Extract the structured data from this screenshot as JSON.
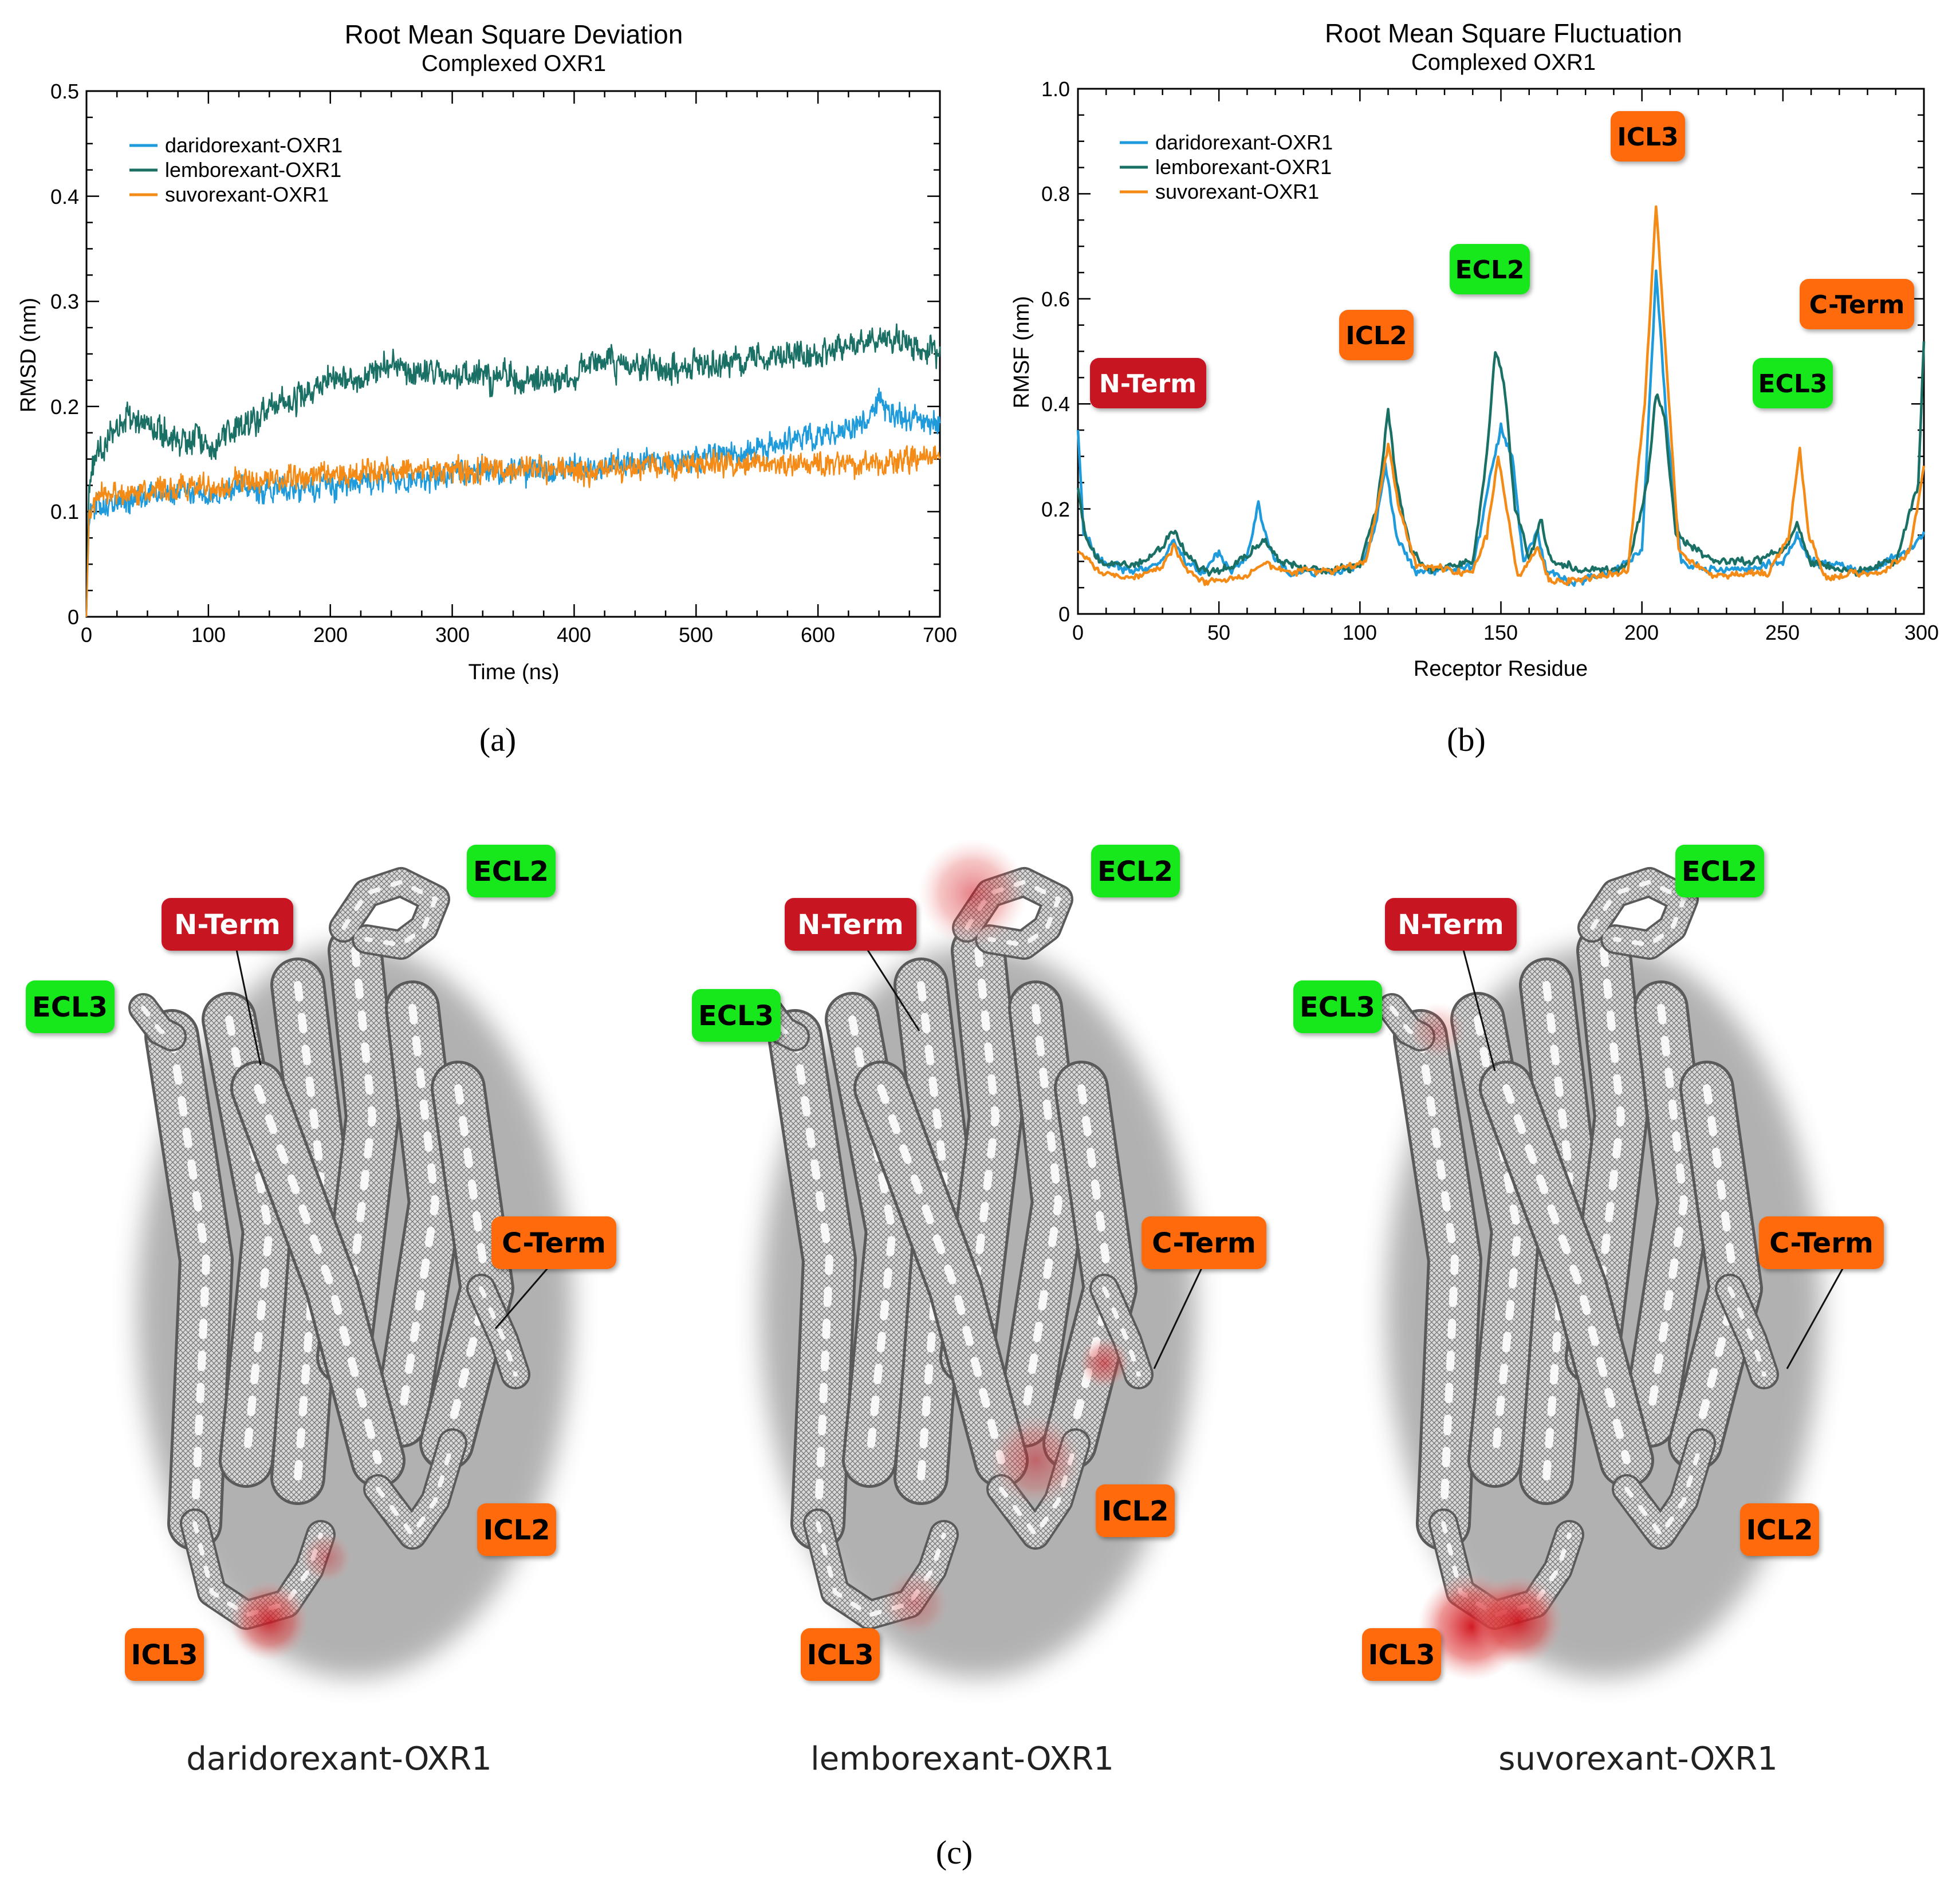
{
  "colors": {
    "daridorexant": "#1f9bdc",
    "lemborexant": "#1a7065",
    "suvorexant": "#f48b17",
    "red_tag": "#c71620",
    "orange_tag": "#ff6b08",
    "green_tag": "#12e81a"
  },
  "panel_a": {
    "label": "(a)",
    "chart_data": {
      "type": "line",
      "title": "Root Mean Square Deviation",
      "subtitle": "Complexed OXR1",
      "xlabel": "Time (ns)",
      "ylabel": "RMSD (nm)",
      "xlim": [
        0,
        700
      ],
      "ylim": [
        0,
        0.5
      ],
      "xticks": [
        "0",
        "100",
        "200",
        "300",
        "400",
        "500",
        "600",
        "700"
      ],
      "yticks": [
        "0",
        "0.1",
        "0.2",
        "0.3",
        "0.4",
        "0.5"
      ],
      "legend": [
        "daridorexant-OXR1",
        "lemborexant-OXR1",
        "suvorexant-OXR1"
      ],
      "legend_position": "top-left",
      "series": [
        {
          "name": "daridorexant-OXR1",
          "color": "#1f9bdc",
          "noise": 0.012,
          "points": [
            [
              0,
              0.0
            ],
            [
              2,
              0.09
            ],
            [
              5,
              0.105
            ],
            [
              50,
              0.115
            ],
            [
              100,
              0.12
            ],
            [
              150,
              0.12
            ],
            [
              200,
              0.125
            ],
            [
              250,
              0.13
            ],
            [
              300,
              0.135
            ],
            [
              350,
              0.14
            ],
            [
              400,
              0.14
            ],
            [
              450,
              0.145
            ],
            [
              500,
              0.15
            ],
            [
              550,
              0.16
            ],
            [
              600,
              0.17
            ],
            [
              640,
              0.185
            ],
            [
              650,
              0.21
            ],
            [
              660,
              0.19
            ],
            [
              700,
              0.185
            ]
          ]
        },
        {
          "name": "lemborexant-OXR1",
          "color": "#1a7065",
          "noise": 0.014,
          "points": [
            [
              0,
              0.0
            ],
            [
              2,
              0.13
            ],
            [
              10,
              0.16
            ],
            [
              30,
              0.19
            ],
            [
              60,
              0.175
            ],
            [
              100,
              0.165
            ],
            [
              130,
              0.18
            ],
            [
              150,
              0.2
            ],
            [
              200,
              0.225
            ],
            [
              250,
              0.235
            ],
            [
              300,
              0.23
            ],
            [
              350,
              0.225
            ],
            [
              400,
              0.225
            ],
            [
              420,
              0.245
            ],
            [
              450,
              0.235
            ],
            [
              500,
              0.24
            ],
            [
              550,
              0.245
            ],
            [
              600,
              0.25
            ],
            [
              650,
              0.265
            ],
            [
              680,
              0.255
            ],
            [
              700,
              0.25
            ]
          ]
        },
        {
          "name": "suvorexant-OXR1",
          "color": "#f48b17",
          "noise": 0.012,
          "points": [
            [
              0,
              0.0
            ],
            [
              2,
              0.1
            ],
            [
              10,
              0.115
            ],
            [
              100,
              0.125
            ],
            [
              200,
              0.135
            ],
            [
              300,
              0.14
            ],
            [
              400,
              0.14
            ],
            [
              500,
              0.145
            ],
            [
              600,
              0.145
            ],
            [
              700,
              0.15
            ]
          ]
        }
      ]
    }
  },
  "panel_b": {
    "label": "(b)",
    "chart_data": {
      "type": "line",
      "title": "Root Mean Square Fluctuation",
      "subtitle": "Complexed OXR1",
      "xlabel": "Receptor Residue",
      "ylabel": "RMSF (nm)",
      "xlim": [
        0,
        300
      ],
      "ylim": [
        0,
        1.0
      ],
      "xticks": [
        "0",
        "50",
        "100",
        "150",
        "200",
        "250",
        "300"
      ],
      "yticks": [
        "0",
        "0.2",
        "0.4",
        "0.6",
        "0.8",
        "1.0"
      ],
      "legend": [
        "daridorexant-OXR1",
        "lemborexant-OXR1",
        "suvorexant-OXR1"
      ],
      "legend_position": "top-left",
      "series": [
        {
          "name": "daridorexant-OXR1",
          "color": "#1f9bdc",
          "noise": 0.008,
          "points": [
            [
              0,
              0.35
            ],
            [
              2,
              0.16
            ],
            [
              8,
              0.1
            ],
            [
              20,
              0.08
            ],
            [
              30,
              0.1
            ],
            [
              34,
              0.14
            ],
            [
              38,
              0.1
            ],
            [
              45,
              0.08
            ],
            [
              50,
              0.12
            ],
            [
              54,
              0.08
            ],
            [
              60,
              0.11
            ],
            [
              64,
              0.21
            ],
            [
              68,
              0.12
            ],
            [
              75,
              0.08
            ],
            [
              90,
              0.08
            ],
            [
              100,
              0.09
            ],
            [
              105,
              0.15
            ],
            [
              109,
              0.28
            ],
            [
              113,
              0.15
            ],
            [
              120,
              0.08
            ],
            [
              140,
              0.09
            ],
            [
              146,
              0.25
            ],
            [
              150,
              0.36
            ],
            [
              154,
              0.3
            ],
            [
              158,
              0.1
            ],
            [
              163,
              0.16
            ],
            [
              166,
              0.08
            ],
            [
              175,
              0.06
            ],
            [
              190,
              0.08
            ],
            [
              200,
              0.12
            ],
            [
              205,
              0.65
            ],
            [
              209,
              0.35
            ],
            [
              214,
              0.1
            ],
            [
              230,
              0.08
            ],
            [
              250,
              0.1
            ],
            [
              255,
              0.15
            ],
            [
              260,
              0.1
            ],
            [
              280,
              0.08
            ],
            [
              295,
              0.12
            ],
            [
              300,
              0.16
            ]
          ]
        },
        {
          "name": "lemborexant-OXR1",
          "color": "#1a7065",
          "noise": 0.008,
          "points": [
            [
              0,
              0.24
            ],
            [
              3,
              0.14
            ],
            [
              8,
              0.1
            ],
            [
              20,
              0.09
            ],
            [
              28,
              0.12
            ],
            [
              34,
              0.16
            ],
            [
              38,
              0.12
            ],
            [
              45,
              0.08
            ],
            [
              55,
              0.09
            ],
            [
              62,
              0.12
            ],
            [
              66,
              0.14
            ],
            [
              72,
              0.1
            ],
            [
              85,
              0.08
            ],
            [
              100,
              0.09
            ],
            [
              106,
              0.2
            ],
            [
              110,
              0.39
            ],
            [
              113,
              0.25
            ],
            [
              118,
              0.12
            ],
            [
              125,
              0.08
            ],
            [
              140,
              0.1
            ],
            [
              145,
              0.3
            ],
            [
              148,
              0.5
            ],
            [
              151,
              0.45
            ],
            [
              155,
              0.2
            ],
            [
              160,
              0.1
            ],
            [
              164,
              0.18
            ],
            [
              168,
              0.1
            ],
            [
              180,
              0.08
            ],
            [
              195,
              0.09
            ],
            [
              202,
              0.25
            ],
            [
              205,
              0.42
            ],
            [
              208,
              0.38
            ],
            [
              212,
              0.15
            ],
            [
              225,
              0.1
            ],
            [
              240,
              0.1
            ],
            [
              250,
              0.12
            ],
            [
              255,
              0.17
            ],
            [
              260,
              0.1
            ],
            [
              275,
              0.08
            ],
            [
              290,
              0.1
            ],
            [
              298,
              0.25
            ],
            [
              300,
              0.52
            ]
          ]
        },
        {
          "name": "suvorexant-OXR1",
          "color": "#f48b17",
          "noise": 0.007,
          "points": [
            [
              0,
              0.12
            ],
            [
              8,
              0.08
            ],
            [
              20,
              0.07
            ],
            [
              30,
              0.09
            ],
            [
              34,
              0.13
            ],
            [
              38,
              0.09
            ],
            [
              45,
              0.06
            ],
            [
              60,
              0.07
            ],
            [
              66,
              0.1
            ],
            [
              72,
              0.08
            ],
            [
              90,
              0.08
            ],
            [
              102,
              0.1
            ],
            [
              106,
              0.2
            ],
            [
              110,
              0.32
            ],
            [
              114,
              0.2
            ],
            [
              120,
              0.09
            ],
            [
              140,
              0.08
            ],
            [
              145,
              0.15
            ],
            [
              149,
              0.3
            ],
            [
              152,
              0.2
            ],
            [
              156,
              0.07
            ],
            [
              163,
              0.13
            ],
            [
              167,
              0.06
            ],
            [
              180,
              0.07
            ],
            [
              195,
              0.08
            ],
            [
              201,
              0.4
            ],
            [
              205,
              0.78
            ],
            [
              209,
              0.45
            ],
            [
              213,
              0.12
            ],
            [
              225,
              0.07
            ],
            [
              245,
              0.08
            ],
            [
              252,
              0.15
            ],
            [
              256,
              0.31
            ],
            [
              259,
              0.15
            ],
            [
              265,
              0.07
            ],
            [
              285,
              0.08
            ],
            [
              295,
              0.12
            ],
            [
              300,
              0.28
            ]
          ]
        }
      ],
      "annotations": [
        {
          "text": "N-Term",
          "color": "#c71620"
        },
        {
          "text": "ICL2",
          "color": "#ff6b08"
        },
        {
          "text": "ECL2",
          "color": "#12e81a"
        },
        {
          "text": "ICL3",
          "color": "#ff6b08"
        },
        {
          "text": "ECL3",
          "color": "#12e81a"
        },
        {
          "text": "C-Term",
          "color": "#ff6b08"
        }
      ]
    }
  },
  "panel_c": {
    "label": "(c)",
    "structures": [
      {
        "caption": "daridorexant-OXR1",
        "tags": {
          "ecl2": "ECL2",
          "nterm": "N-Term",
          "ecl3": "ECL3",
          "cterm": "C-Term",
          "icl2": "ICL2",
          "icl3": "ICL3"
        }
      },
      {
        "caption": "lemborexant-OXR1",
        "tags": {
          "ecl2": "ECL2",
          "nterm": "N-Term",
          "ecl3": "ECL3",
          "cterm": "C-Term",
          "icl2": "ICL2",
          "icl3": "ICL3"
        }
      },
      {
        "caption": "suvorexant-OXR1",
        "tags": {
          "ecl2": "ECL2",
          "nterm": "N-Term",
          "ecl3": "ECL3",
          "cterm": "C-Term",
          "icl2": "ICL2",
          "icl3": "ICL3"
        }
      }
    ]
  }
}
